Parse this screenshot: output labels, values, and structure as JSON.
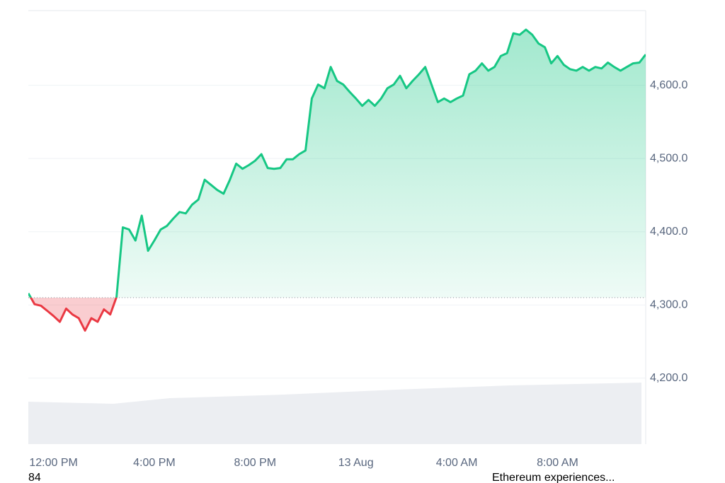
{
  "chart_data": {
    "type": "line",
    "baseline": 4310,
    "xlim": [
      0,
      98
    ],
    "xticks": [
      {
        "value": 4,
        "label": "12:00 PM"
      },
      {
        "value": 20,
        "label": "4:00 PM"
      },
      {
        "value": 36,
        "label": "8:00 PM"
      },
      {
        "value": 52,
        "label": "13 Aug"
      },
      {
        "value": 68,
        "label": "4:00 AM"
      },
      {
        "value": 84,
        "label": "8:00 AM"
      }
    ],
    "ylim": [
      4110,
      4702
    ],
    "yticks": [
      {
        "value": 4200,
        "label": "4,200.0"
      },
      {
        "value": 4300,
        "label": "4,300.0"
      },
      {
        "value": 4400,
        "label": "4,400.0"
      },
      {
        "value": 4500,
        "label": "4,500.0"
      },
      {
        "value": 4600,
        "label": "4,600.0"
      }
    ],
    "grid": true,
    "up_color": "#16c784",
    "down_color": "#ea3943",
    "series": [
      {
        "values": [
          4316,
          4301,
          4299,
          4292,
          4285,
          4277,
          4295,
          4287,
          4282,
          4265,
          4282,
          4277,
          4294,
          4287,
          4311,
          4406,
          4403,
          4388,
          4422,
          4374,
          4388,
          4403,
          4408,
          4418,
          4427,
          4425,
          4437,
          4444,
          4471,
          4464,
          4457,
          4452,
          4471,
          4493,
          4486,
          4491,
          4497,
          4506,
          4487,
          4486,
          4487,
          4499,
          4499,
          4506,
          4511,
          4582,
          4601,
          4596,
          4625,
          4606,
          4601,
          4591,
          4582,
          4572,
          4580,
          4572,
          4582,
          4596,
          4601,
          4613,
          4596,
          4606,
          4615,
          4625,
          4601,
          4577,
          4582,
          4577,
          4582,
          4586,
          4615,
          4620,
          4630,
          4620,
          4625,
          4640,
          4644,
          4671,
          4669,
          4676,
          4669,
          4657,
          4652,
          4630,
          4640,
          4628,
          4622,
          4620,
          4625,
          4620,
          4625,
          4623,
          4631,
          4625,
          4620,
          4625,
          4630,
          4631,
          4642
        ]
      }
    ],
    "annotations": [
      "84",
      "Ethereum experiences..."
    ]
  }
}
